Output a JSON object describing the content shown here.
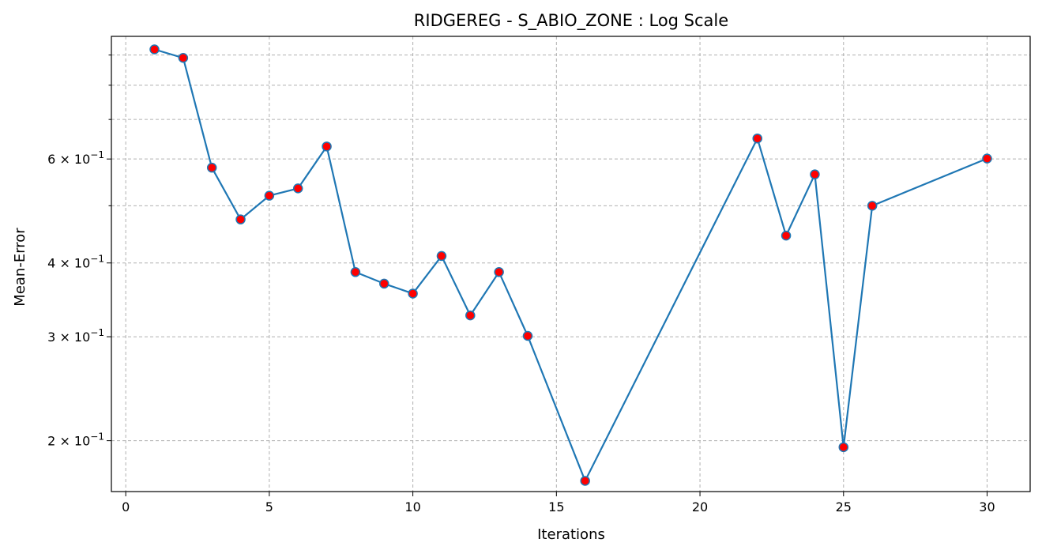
{
  "chart_data": {
    "type": "line",
    "title": "RIDGEREG - S_ABIO_ZONE : Log Scale",
    "xlabel": "Iterations",
    "ylabel": "Mean-Error",
    "yscale": "log",
    "xlim": [
      -0.5,
      31.5
    ],
    "ylim": [
      0.164,
      0.968
    ],
    "grid": true,
    "x_ticks": [
      0,
      5,
      10,
      15,
      20,
      25,
      30
    ],
    "y_major_ticks": [
      {
        "value": 0.2,
        "label": "2 × 10",
        "exp": "−1"
      },
      {
        "value": 0.3,
        "label": "3 × 10",
        "exp": "−1"
      },
      {
        "value": 0.4,
        "label": "4 × 10",
        "exp": "−1"
      },
      {
        "value": 0.6,
        "label": "6 × 10",
        "exp": "−1"
      }
    ],
    "y_minor_ticks": [
      0.5,
      0.7,
      0.8,
      0.9
    ],
    "line_color": "#1f77b4",
    "marker_fill": "#ff0000",
    "marker_edge": "#1f77b4",
    "grid_color": "#b0b0b0",
    "series": [
      {
        "x": [
          1,
          2,
          3,
          4,
          5,
          6,
          7,
          8,
          9,
          10,
          11,
          12,
          13,
          14,
          16,
          22,
          23,
          24,
          25,
          26,
          30
        ],
        "y": [
          0.92,
          0.89,
          0.58,
          0.474,
          0.52,
          0.535,
          0.63,
          0.386,
          0.369,
          0.355,
          0.411,
          0.326,
          0.386,
          0.301,
          0.171,
          0.65,
          0.445,
          0.565,
          0.195,
          0.5,
          0.601
        ]
      }
    ]
  }
}
